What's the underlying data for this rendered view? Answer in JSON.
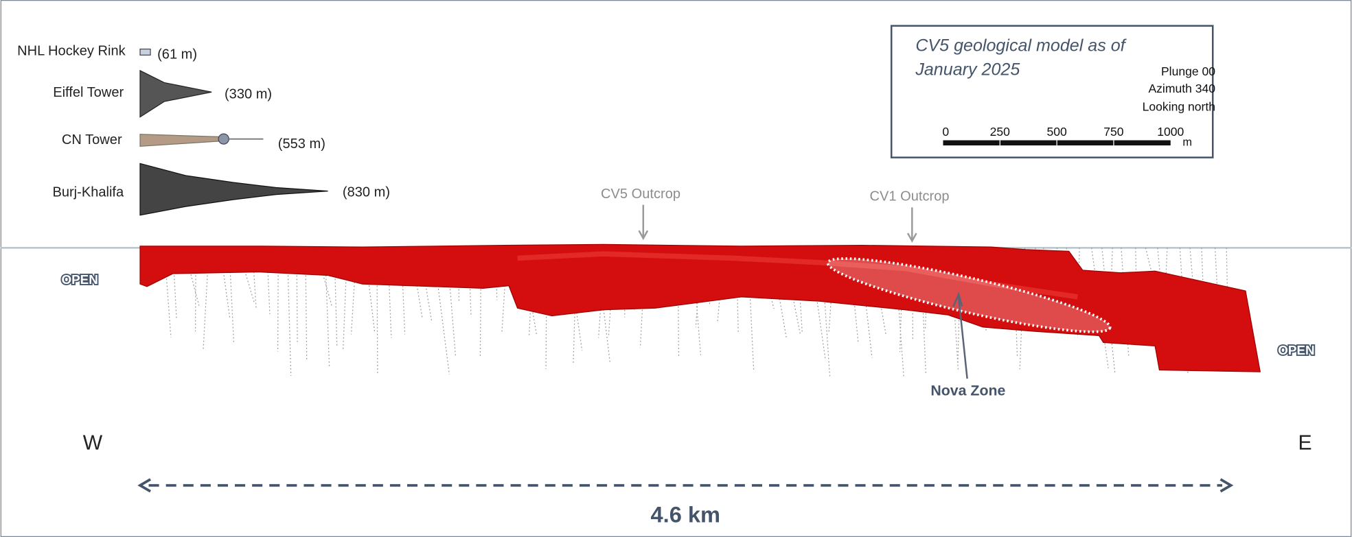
{
  "references": [
    {
      "name": "NHL Hockey Rink",
      "height": "(61 m)"
    },
    {
      "name": "Eiffel Tower",
      "height": "(330 m)"
    },
    {
      "name": "CN Tower",
      "height": "(553 m)"
    },
    {
      "name": "Burj-Khalifa",
      "height": "(830 m)"
    }
  ],
  "legend": {
    "title_line1": "CV5 geological model as of",
    "title_line2": "January 2025",
    "plunge": "Plunge 00",
    "azimuth": "Azimuth 340",
    "view": "Looking north",
    "scale_ticks": [
      "0",
      "250",
      "500",
      "750",
      "1000"
    ],
    "scale_unit": "m"
  },
  "labels": {
    "cv5_outcrop": "CV5 Outcrop",
    "cv1_outcrop": "CV1 Outcrop",
    "nova_zone": "Nova Zone",
    "open_west": "OPEN",
    "open_east": "OPEN",
    "west": "W",
    "east": "E",
    "length": "4.6 km"
  }
}
